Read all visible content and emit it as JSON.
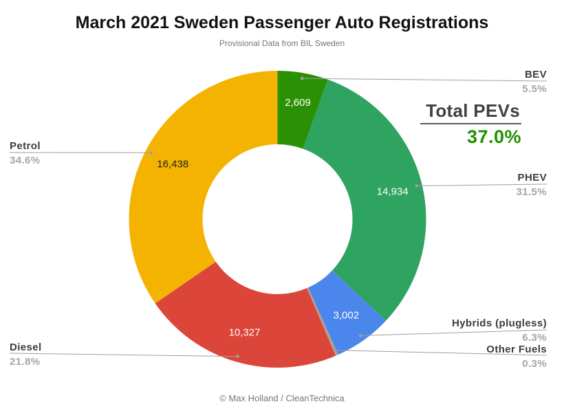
{
  "chart_data": {
    "type": "pie",
    "variant": "donut",
    "title": "March 2021 Sweden Passenger Auto Registrations",
    "subtitle": "Provisional Data from BIL Sweden",
    "footer": "© Max Holland / CleanTechnica",
    "legend_position": "outside-callouts",
    "start_angle_deg": 0,
    "direction": "clockwise",
    "slices": [
      {
        "name": "BEV",
        "pct": 5.5,
        "pct_label": "5.5%",
        "value": 2609,
        "value_label": "2,609",
        "color": "#2b9104",
        "label_color": "#ffffff"
      },
      {
        "name": "PHEV",
        "pct": 31.5,
        "pct_label": "31.5%",
        "value": 14934,
        "value_label": "14,934",
        "color": "#2fa360",
        "label_color": "#ffffff"
      },
      {
        "name": "Hybrids (plugless)",
        "pct": 6.3,
        "pct_label": "6.3%",
        "value": 3002,
        "value_label": "3,002",
        "color": "#4b86ec",
        "label_color": "#ffffff"
      },
      {
        "name": "Other Fuels",
        "pct": 0.3,
        "pct_label": "0.3%",
        "value": null,
        "value_label": "",
        "color": "#b3a08f",
        "label_color": "#ffffff"
      },
      {
        "name": "Diesel",
        "pct": 21.8,
        "pct_label": "21.8%",
        "value": 10327,
        "value_label": "10,327",
        "color": "#dc453a",
        "label_color": "#ffffff"
      },
      {
        "name": "Petrol",
        "pct": 34.6,
        "pct_label": "34.6%",
        "value": 16438,
        "value_label": "16,438",
        "color": "#f5b301",
        "label_color": "#212121"
      }
    ],
    "annotation": {
      "label": "Total PEVs",
      "value": "37.0%",
      "value_color": "#1e9200"
    }
  }
}
